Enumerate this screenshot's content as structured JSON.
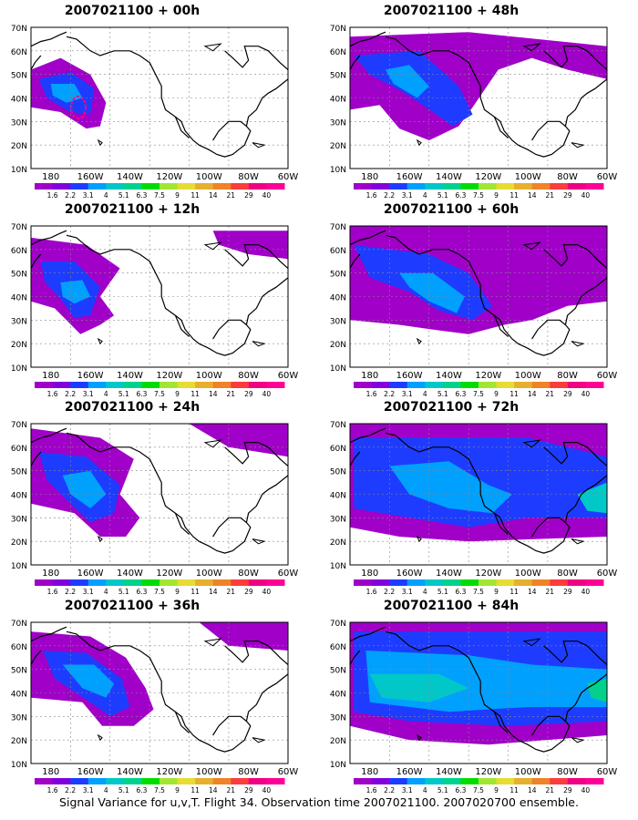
{
  "panels": [
    {
      "title": "2007021100 + 00h",
      "lead": "00h"
    },
    {
      "title": "2007021100 + 48h",
      "lead": "48h"
    },
    {
      "title": "2007021100 + 12h",
      "lead": "12h"
    },
    {
      "title": "2007021100 + 60h",
      "lead": "60h"
    },
    {
      "title": "2007021100 + 24h",
      "lead": "24h"
    },
    {
      "title": "2007021100 + 72h",
      "lead": "72h"
    },
    {
      "title": "2007021100 + 36h",
      "lead": "36h"
    },
    {
      "title": "2007021100 + 84h",
      "lead": "84h"
    }
  ],
  "axes": {
    "lat_labels": [
      "70N",
      "60N",
      "50N",
      "40N",
      "30N",
      "20N",
      "10N"
    ],
    "lon_labels": [
      "180",
      "160W",
      "140W",
      "120W",
      "100W",
      "80W",
      "60W"
    ]
  },
  "colorbar": {
    "labels": [
      "1.6",
      "2.2",
      "3.1",
      "4",
      "5.1",
      "6.3",
      "7.5",
      "9",
      "11",
      "14",
      "21",
      "29",
      "40"
    ],
    "colors": [
      "#a000c8",
      "#8200dc",
      "#1e3cff",
      "#00a0ff",
      "#00c8c8",
      "#00d28c",
      "#00dc00",
      "#a0e632",
      "#e6dc32",
      "#e6af2d",
      "#f08228",
      "#fa3c3c",
      "#f00082",
      "#ff0096"
    ]
  },
  "colors": {
    "coast": "#000000",
    "grid": "#888888",
    "highlight_contour": "#ff0080"
  },
  "footer": "Signal Variance for u,v,T. Flight 34. Observation time 2007021100. 2007020700 ensemble."
}
